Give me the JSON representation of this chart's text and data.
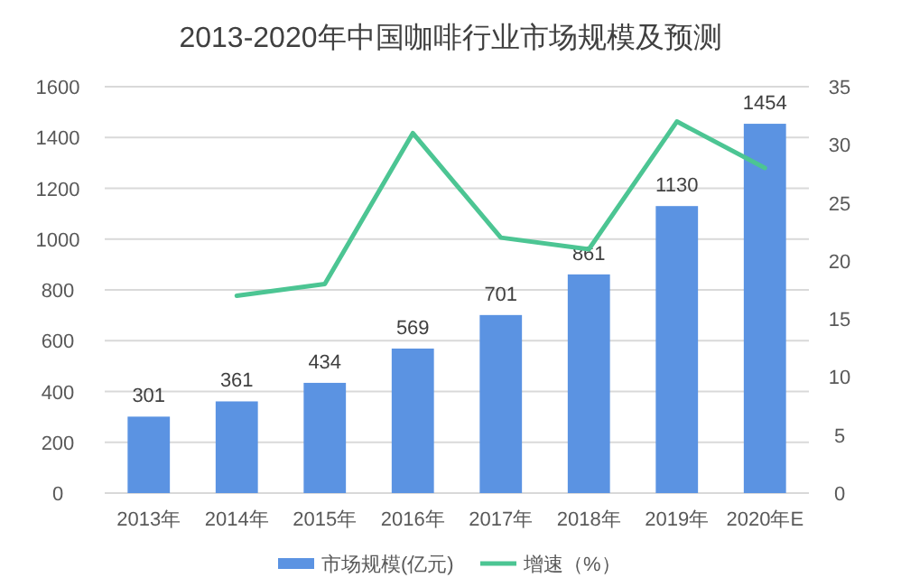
{
  "chart_data": {
    "type": "bar",
    "title": "2013-2020年中国咖啡行业市场规模及预测",
    "categories": [
      "2013年",
      "2014年",
      "2015年",
      "2016年",
      "2017年",
      "2018年",
      "2019年",
      "2020年E"
    ],
    "series": [
      {
        "name": "市场规模(亿元)",
        "color": "#5b93e2",
        "values": [
          301,
          361,
          434,
          569,
          701,
          861,
          1130,
          1454
        ]
      },
      {
        "name": "增速（%）",
        "type": "line",
        "axis": "y2",
        "color": "#4cc593",
        "values": [
          null,
          17,
          18,
          31,
          22,
          21,
          32,
          28
        ]
      }
    ],
    "ylim": [
      0,
      1600
    ],
    "yticks": [
      0,
      200,
      400,
      600,
      800,
      1000,
      1200,
      1400,
      1600
    ],
    "y2lim": [
      0,
      35
    ],
    "y2ticks": [
      0,
      5,
      10,
      15,
      20,
      25,
      30,
      35
    ],
    "grid": "y",
    "legend": "bottom",
    "value_labels": [
      "301",
      "361",
      "434",
      "569",
      "701",
      "861",
      "1130",
      "1454"
    ]
  }
}
